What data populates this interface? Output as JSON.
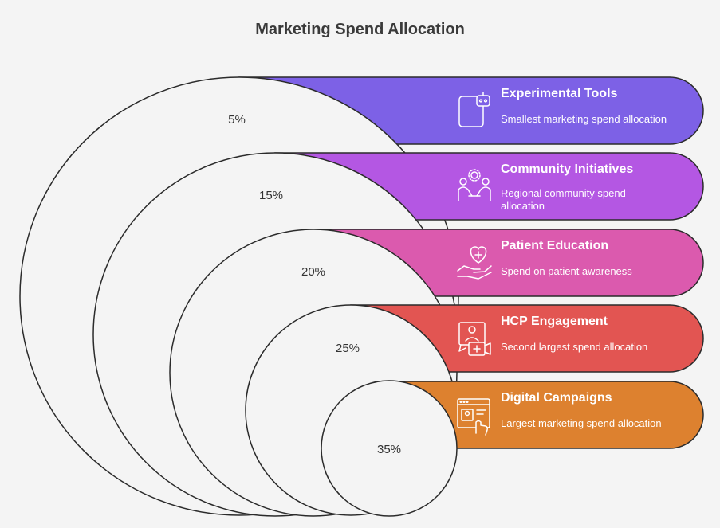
{
  "title": "Marketing Spend Allocation",
  "colors": {
    "background": "#f4f4f4",
    "circle_fill": "#f4f4f4",
    "outline": "#2b2b2b"
  },
  "segments": [
    {
      "percent": "5%",
      "title": "Experimental Tools",
      "description": "Smallest marketing spend allocation",
      "color": "#7d61e6",
      "icon": "robot-tablet-icon"
    },
    {
      "percent": "15%",
      "title": "Community Initiatives",
      "description": "Regional community spend allocation",
      "color": "#b457e3",
      "icon": "community-people-icon"
    },
    {
      "percent": "20%",
      "title": "Patient Education",
      "description": "Spend on patient awareness",
      "color": "#db5aae",
      "icon": "heart-hand-icon"
    },
    {
      "percent": "25%",
      "title": "HCP Engagement",
      "description": "Second largest spend allocation",
      "color": "#e25552",
      "icon": "doctor-video-icon"
    },
    {
      "percent": "35%",
      "title": "Digital Campaigns",
      "description": "Largest marketing spend allocation",
      "color": "#dd812f",
      "icon": "web-browser-touch-icon"
    }
  ]
}
